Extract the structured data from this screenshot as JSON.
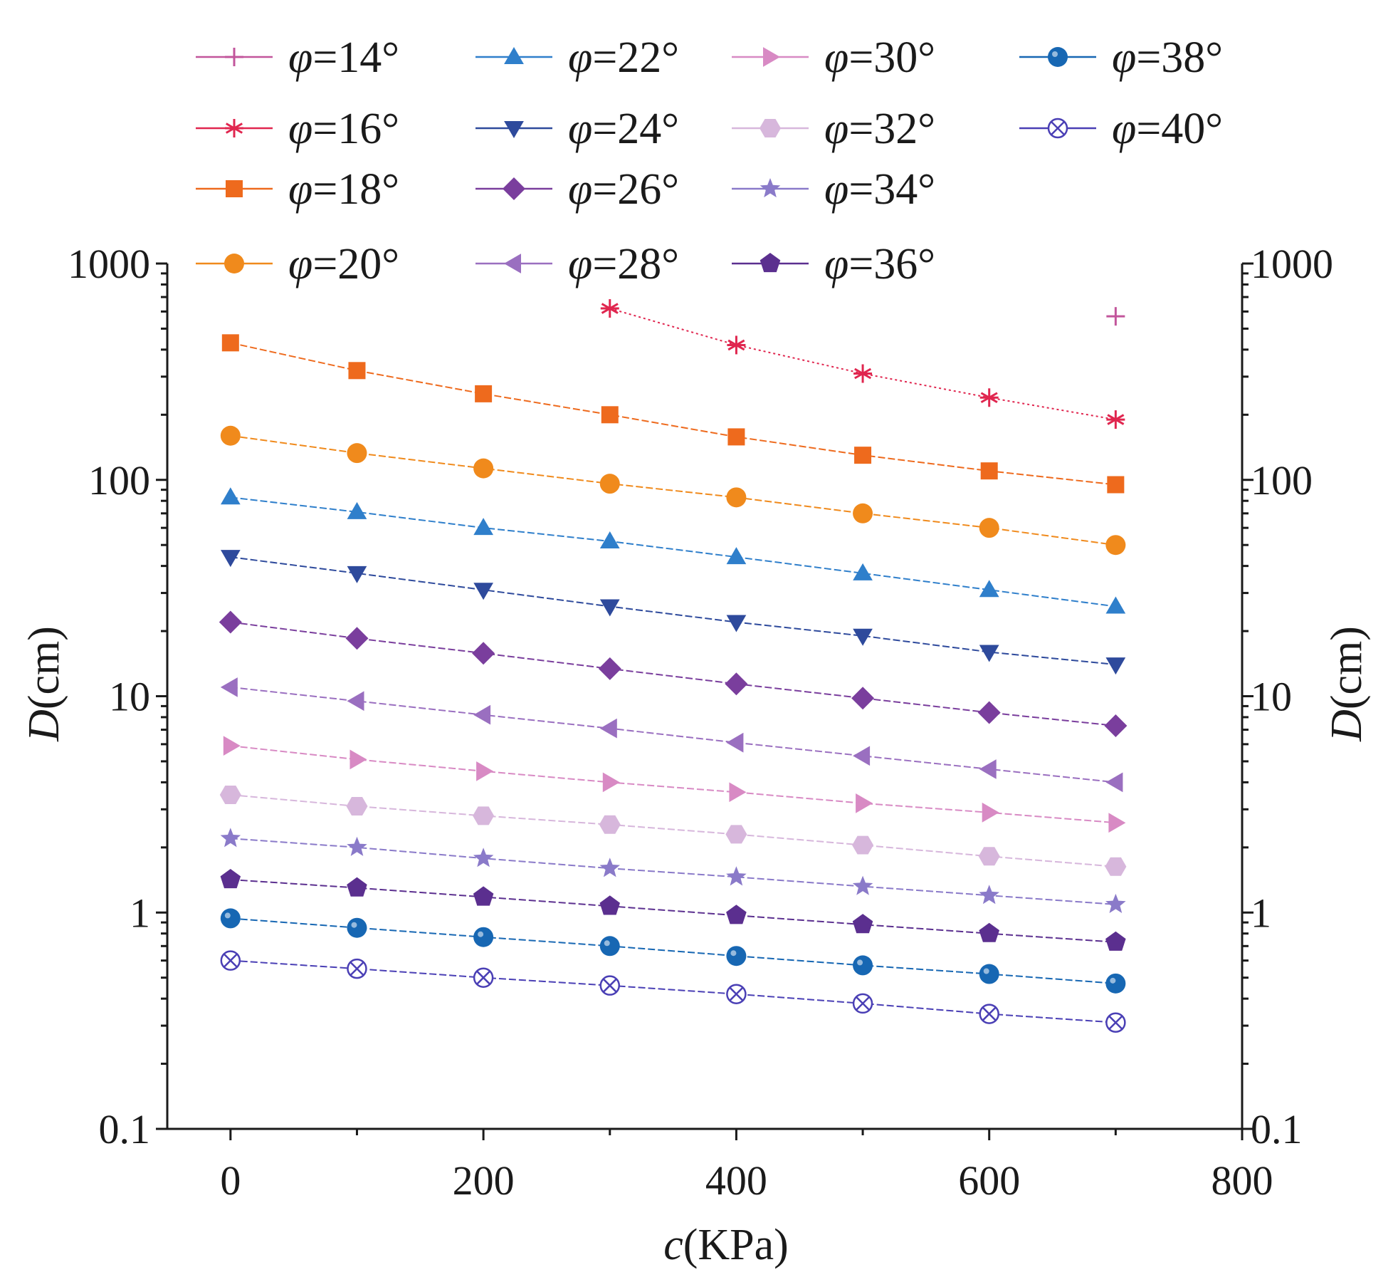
{
  "chart_data": {
    "type": "line",
    "title": "",
    "xlabel": "c(KPa)",
    "xlabel_var": "c",
    "xlabel_unit": "(KPa)",
    "ylabel": "D(cm)",
    "ylabel_var": "D",
    "ylabel_unit": "(cm)",
    "y2label": "D(cm)",
    "xscale": "linear",
    "yscale": "log",
    "xlim": [
      -50,
      800
    ],
    "ylim": [
      0.1,
      1000
    ],
    "x_ticks": [
      0,
      200,
      400,
      600,
      800
    ],
    "x_tick_labels": [
      "0",
      "200",
      "400",
      "600",
      "800"
    ],
    "y_ticks": [
      0.1,
      1,
      10,
      100,
      1000
    ],
    "y_tick_labels": [
      "0.1",
      "1",
      "10",
      "100",
      "1000"
    ],
    "y2_tick_labels": [
      "0.1",
      "1",
      "10",
      "100",
      "1000"
    ],
    "grid": false,
    "legend_position": "top",
    "legend_columns": 4,
    "x": [
      0,
      100,
      200,
      300,
      400,
      500,
      600,
      700
    ],
    "series": [
      {
        "name": "φ=14°",
        "symbol": "φ",
        "label": "=14°",
        "marker": "plus",
        "color": "#c2559b",
        "line": "none",
        "values": [
          null,
          null,
          null,
          null,
          null,
          null,
          null,
          570
        ]
      },
      {
        "name": "φ=16°",
        "symbol": "φ",
        "label": "=16°",
        "marker": "asterisk",
        "color": "#e0264f",
        "line": "dotted",
        "values": [
          null,
          null,
          null,
          620,
          420,
          310,
          240,
          190
        ]
      },
      {
        "name": "φ=18°",
        "symbol": "φ",
        "label": "=18°",
        "marker": "square",
        "color": "#ee6a1d",
        "line": "dashed",
        "values": [
          430,
          320,
          250,
          200,
          158,
          130,
          110,
          95
        ]
      },
      {
        "name": "φ=20°",
        "symbol": "φ",
        "label": "=20°",
        "marker": "circle",
        "color": "#f08a1c",
        "line": "dashed",
        "values": [
          160,
          133,
          113,
          96,
          83,
          70,
          60,
          50
        ]
      },
      {
        "name": "φ=22°",
        "symbol": "φ",
        "label": "=22°",
        "marker": "triangle-up",
        "color": "#2f7fcb",
        "line": "dashed",
        "values": [
          83,
          71,
          60,
          52,
          44,
          37,
          31,
          26
        ]
      },
      {
        "name": "φ=24°",
        "symbol": "φ",
        "label": "=24°",
        "marker": "triangle-down",
        "color": "#2e4a9c",
        "line": "dashed",
        "values": [
          44,
          37,
          31,
          26,
          22,
          19,
          16,
          14
        ]
      },
      {
        "name": "φ=26°",
        "symbol": "φ",
        "label": "=26°",
        "marker": "diamond",
        "color": "#7a3e9d",
        "line": "dashed",
        "values": [
          22,
          18.5,
          15.8,
          13.4,
          11.4,
          9.8,
          8.4,
          7.3
        ]
      },
      {
        "name": "φ=28°",
        "symbol": "φ",
        "label": "=28°",
        "marker": "triangle-left",
        "color": "#9a6fc0",
        "line": "dashed",
        "values": [
          11,
          9.5,
          8.2,
          7.1,
          6.1,
          5.3,
          4.6,
          4.0
        ]
      },
      {
        "name": "φ=30°",
        "symbol": "φ",
        "label": "=30°",
        "marker": "triangle-right",
        "color": "#d88ac4",
        "line": "dashed",
        "values": [
          5.9,
          5.1,
          4.5,
          4.0,
          3.6,
          3.2,
          2.9,
          2.6
        ]
      },
      {
        "name": "φ=32°",
        "symbol": "φ",
        "label": "=32°",
        "marker": "hexagon",
        "color": "#d7b7dc",
        "line": "dashed",
        "values": [
          3.5,
          3.1,
          2.8,
          2.55,
          2.3,
          2.05,
          1.82,
          1.63
        ]
      },
      {
        "name": "φ=34°",
        "symbol": "φ",
        "label": "=34°",
        "marker": "star",
        "color": "#8a7ac9",
        "line": "dashed",
        "values": [
          2.2,
          2.0,
          1.78,
          1.6,
          1.46,
          1.32,
          1.2,
          1.09
        ]
      },
      {
        "name": "φ=36°",
        "symbol": "φ",
        "label": "=36°",
        "marker": "pentagon",
        "color": "#5b2f8f",
        "line": "dashed",
        "values": [
          1.42,
          1.3,
          1.18,
          1.07,
          0.97,
          0.88,
          0.8,
          0.73
        ]
      },
      {
        "name": "φ=38°",
        "symbol": "φ",
        "label": "=38°",
        "marker": "ball",
        "color": "#1767b3",
        "line": "dashed",
        "values": [
          0.94,
          0.85,
          0.77,
          0.7,
          0.63,
          0.57,
          0.52,
          0.47
        ]
      },
      {
        "name": "φ=40°",
        "symbol": "φ",
        "label": "=40°",
        "marker": "circle-x",
        "color": "#4a3fb5",
        "line": "dashed",
        "values": [
          0.6,
          0.55,
          0.5,
          0.46,
          0.42,
          0.38,
          0.34,
          0.31
        ]
      }
    ]
  }
}
